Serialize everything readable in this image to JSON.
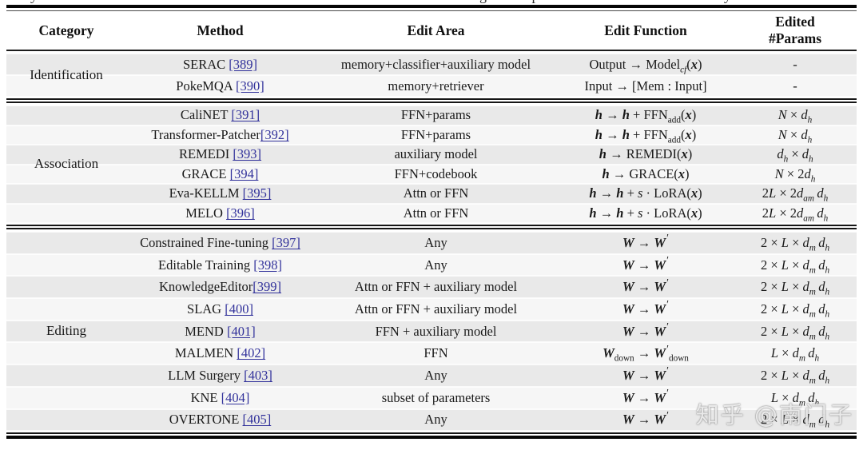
{
  "caption_fragments": [
    "y",
    "g p",
    "y"
  ],
  "colors": {
    "link": "#32329b",
    "stripe_dark": "#e9e9e9",
    "stripe_light": "#f6f6f6",
    "rule": "#111111",
    "background": "#ffffff"
  },
  "watermark": {
    "text": "知乎 @南门子"
  },
  "table": {
    "columns": [
      "Category",
      "Method",
      "Edit Area",
      "Edit Function",
      "Edited\n#Params"
    ],
    "sections": [
      {
        "category": "Identification",
        "rows": [
          {
            "method": "SERAC ",
            "cite": "[389]",
            "area": "memory+classifier+auxiliary model",
            "fn": "Output → Model\\v{cf}(\\b{x})",
            "params": "-"
          },
          {
            "method": "PokeMQA ",
            "cite": "[390]",
            "area": "memory+retriever",
            "fn": "Input → [Mem : Input]",
            "params": "-"
          }
        ]
      },
      {
        "category": "Association",
        "rows": [
          {
            "method": "CaliNET ",
            "cite": "[391]",
            "area": "FFN+params",
            "fn": "\\b{h} → \\b{h} + FFN\\s{add}(\\b{x})",
            "params": "\\i{N} × \\i{d}\\v{h}"
          },
          {
            "method": "Transformer-Patcher",
            "cite": "[392]",
            "area": "FFN+params",
            "fn": "\\b{h} → \\b{h} + FFN\\s{add}(\\b{x})",
            "params": "\\i{N} × \\i{d}\\v{h}"
          },
          {
            "method": "REMEDI ",
            "cite": "[393]",
            "area": "auxiliary model",
            "fn": "\\b{h} → REMEDI(\\b{x})",
            "params": "\\i{d}\\v{h} × \\i{d}\\v{h}"
          },
          {
            "method": "GRACE ",
            "cite": "[394]",
            "area": "FFN+codebook",
            "fn": "\\b{h} → GRACE(\\b{x})",
            "params": "\\i{N} × 2\\i{d}\\v{h}"
          },
          {
            "method": "Eva-KELLM ",
            "cite": "[395]",
            "area": "Attn or FFN",
            "fn": "\\b{h} → \\b{h} + \\i{s} · LoRA(\\b{x})",
            "params": "2\\i{L} × 2\\i{d}\\v{am} \\i{d}\\v{h}"
          },
          {
            "method": "MELO ",
            "cite": "[396]",
            "area": "Attn or FFN",
            "fn": "\\b{h} → \\b{h} + \\i{s} · LoRA(\\b{x})",
            "params": "2\\i{L} × 2\\i{d}\\v{am} \\i{d}\\v{h}"
          }
        ]
      },
      {
        "category": "Editing",
        "rows": [
          {
            "method": "Constrained Fine-tuning ",
            "cite": "[397]",
            "area": "Any",
            "fn": "\\b{W} → \\b{W}\\P",
            "params": "2 × \\i{L} × \\i{d}\\v{m} \\i{d}\\v{h}"
          },
          {
            "method": "Editable Training ",
            "cite": "[398]",
            "area": "Any",
            "fn": "\\b{W} → \\b{W}\\P",
            "params": "2 × \\i{L} × \\i{d}\\v{m} \\i{d}\\v{h}"
          },
          {
            "method": "KnowledgeEditor",
            "cite": "[399]",
            "area": "Attn or FFN + auxiliary model",
            "fn": "\\b{W} → \\b{W}\\P",
            "params": "2 × \\i{L} × \\i{d}\\v{m} \\i{d}\\v{h}"
          },
          {
            "method": "SLAG ",
            "cite": "[400]",
            "area": "Attn or FFN + auxiliary model",
            "fn": "\\b{W} → \\b{W}\\P",
            "params": "2 × \\i{L} × \\i{d}\\v{m} \\i{d}\\v{h}"
          },
          {
            "method": "MEND ",
            "cite": "[401]",
            "area": "FFN + auxiliary model",
            "fn": "\\b{W} → \\b{W}\\P",
            "params": "2 × \\i{L} × \\i{d}\\v{m} \\i{d}\\v{h}"
          },
          {
            "method": "MALMEN ",
            "cite": "[402]",
            "area": "FFN",
            "fn": "\\b{W}\\s{down} → \\b{W}\\P\\s{down}",
            "params": "\\i{L} × \\i{d}\\v{m} \\i{d}\\v{h}"
          },
          {
            "method": "LLM Surgery ",
            "cite": "[403]",
            "area": "Any",
            "fn": "\\b{W} → \\b{W}\\P",
            "params": "2 × \\i{L} × \\i{d}\\v{m} \\i{d}\\v{h}"
          },
          {
            "method": "KNE ",
            "cite": "[404]",
            "area": "subset of parameters",
            "fn": "\\b{W} → \\b{W}\\P",
            "params": "\\i{L} × \\i{d}\\v{m} \\i{d}\\v{h}"
          },
          {
            "method": "OVERTONE ",
            "cite": "[405]",
            "area": "Any",
            "fn": "\\b{W} → \\b{W}\\P",
            "params": "2 × \\i{L} × \\i{d}\\v{m} \\i{d}\\v{h}"
          }
        ]
      }
    ]
  }
}
